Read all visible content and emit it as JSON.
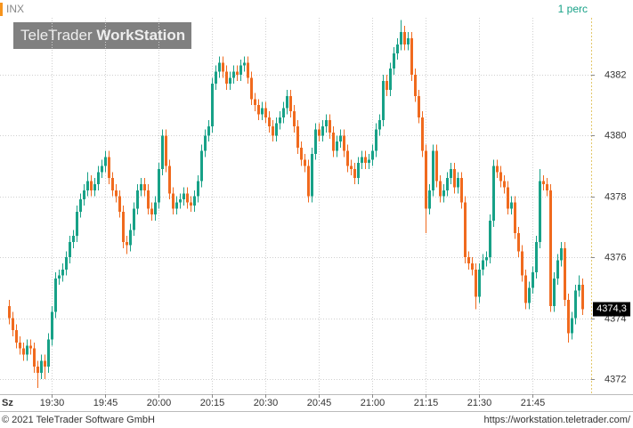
{
  "chart_data": {
    "type": "candlestick",
    "symbol": "INX",
    "interval": "1 perc",
    "watermark": [
      "TeleTrader",
      "WorkStation"
    ],
    "x_label": "Sz",
    "up_color": "#17a187",
    "down_color": "#f06a1e",
    "grid": true,
    "ylim": [
      4371.5,
      4383.87
    ],
    "yticks": [
      4372,
      4374,
      4376,
      4378,
      4380,
      4382
    ],
    "last_value": {
      "value": 4374.3,
      "label": "4374,3"
    },
    "categories": [
      null,
      null,
      null,
      null,
      null,
      null,
      null,
      null,
      null,
      null,
      null,
      null,
      "19:30",
      null,
      null,
      null,
      null,
      null,
      null,
      null,
      null,
      null,
      null,
      null,
      null,
      null,
      null,
      "19:45",
      null,
      null,
      null,
      null,
      null,
      null,
      null,
      null,
      null,
      null,
      null,
      null,
      null,
      null,
      "20:00",
      null,
      null,
      null,
      null,
      null,
      null,
      null,
      null,
      null,
      null,
      null,
      null,
      null,
      null,
      "20:15",
      null,
      null,
      null,
      null,
      null,
      null,
      null,
      null,
      null,
      null,
      null,
      null,
      null,
      null,
      "20:30",
      null,
      null,
      null,
      null,
      null,
      null,
      null,
      null,
      null,
      null,
      null,
      null,
      null,
      null,
      "20:45",
      null,
      null,
      null,
      null,
      null,
      null,
      null,
      null,
      null,
      null,
      null,
      null,
      null,
      null,
      "21:00",
      null,
      null,
      null,
      null,
      null,
      null,
      null,
      null,
      null,
      null,
      null,
      null,
      null,
      null,
      "21:15",
      null,
      null,
      null,
      null,
      null,
      null,
      null,
      null,
      null,
      null,
      null,
      null,
      null,
      null,
      "21:30",
      null,
      null,
      null,
      null,
      null,
      null,
      null,
      null,
      null,
      null,
      null,
      null,
      null,
      null,
      "21:45",
      null,
      null,
      null,
      null,
      null,
      null,
      null,
      null,
      null,
      null,
      null,
      null,
      null,
      null
    ],
    "open": [
      4374.4,
      4374.0,
      4373.6,
      4373.2,
      4373.0,
      4372.8,
      4373.1,
      4373.0,
      4372.4,
      4372.2,
      4372.6,
      4372.4,
      4373.3,
      4374.2,
      4375.3,
      4375.4,
      4375.6,
      4376.0,
      4376.5,
      4376.7,
      4377.5,
      4377.9,
      4378.2,
      4378.5,
      4378.2,
      4378.4,
      4378.8,
      4379.0,
      4379.3,
      4378.6,
      4378.2,
      4378.0,
      4377.5,
      4376.5,
      4376.4,
      4376.9,
      4377.6,
      4378.2,
      4378.4,
      4378.2,
      4377.6,
      4377.4,
      4377.8,
      4378.9,
      4380.0,
      4379.0,
      4378.1,
      4377.6,
      4377.8,
      4377.9,
      4378.1,
      4377.8,
      4377.7,
      4378.0,
      4378.5,
      4379.5,
      4380.0,
      4380.3,
      4381.7,
      4382.1,
      4382.4,
      4382.1,
      4381.7,
      4381.9,
      4382.1,
      4382.0,
      4382.3,
      4382.4,
      4381.9,
      4381.2,
      4381.0,
      4380.7,
      4380.9,
      4380.6,
      4380.3,
      4380.0,
      4380.4,
      4380.6,
      4380.9,
      4381.3,
      4380.8,
      4380.3,
      4379.6,
      4379.2,
      4379.0,
      4378.0,
      4379.4,
      4380.2,
      4380.0,
      4380.3,
      4380.5,
      4380.1,
      4379.5,
      4379.8,
      4380.0,
      4379.5,
      4379.0,
      4378.9,
      4378.6,
      4379.1,
      4379.3,
      4379.1,
      4379.2,
      4379.5,
      4380.2,
      4380.5,
      4381.8,
      4381.5,
      4382.2,
      4382.7,
      4383.0,
      4383.4,
      4383.0,
      4383.2,
      4382.0,
      4381.3,
      4380.6,
      4379.5,
      4377.6,
      4378.2,
      4379.5,
      4378.5,
      4378.0,
      4378.2,
      4378.6,
      4378.9,
      4378.3,
      4378.6,
      4377.8,
      4376.0,
      4375.8,
      4375.6,
      4374.7,
      4375.6,
      4375.9,
      4376.0,
      4377.2,
      4379.0,
      4378.8,
      4378.5,
      4378.3,
      4377.6,
      4377.8,
      4376.8,
      4376.2,
      4375.4,
      4374.5,
      4375.0,
      4375.5,
      4376.5,
      4378.5,
      4378.4,
      4378.2,
      4374.4,
      4375.3,
      4375.9,
      4376.3,
      4374.6,
      4373.5,
      4374.0,
      4374.9,
      4375.1
    ],
    "high": [
      4374.6,
      4374.2,
      4373.8,
      4373.4,
      4373.2,
      4373.3,
      4373.3,
      4373.2,
      4372.6,
      4372.8,
      4372.8,
      4373.5,
      4374.4,
      4375.5,
      4375.6,
      4375.8,
      4376.2,
      4376.7,
      4376.9,
      4377.7,
      4378.1,
      4378.4,
      4378.8,
      4378.7,
      4378.6,
      4379.0,
      4379.2,
      4379.5,
      4379.5,
      4378.8,
      4378.4,
      4378.2,
      4377.7,
      4376.7,
      4377.1,
      4377.8,
      4378.4,
      4378.6,
      4378.6,
      4378.4,
      4377.8,
      4378.0,
      4379.1,
      4380.2,
      4380.2,
      4379.2,
      4378.3,
      4378.0,
      4378.1,
      4378.3,
      4378.3,
      4378.0,
      4378.2,
      4378.7,
      4379.7,
      4380.2,
      4380.5,
      4381.9,
      4382.3,
      4382.6,
      4382.6,
      4382.3,
      4382.1,
      4382.3,
      4382.3,
      4382.5,
      4382.6,
      4382.6,
      4382.1,
      4381.4,
      4381.2,
      4381.1,
      4381.1,
      4380.8,
      4380.5,
      4380.6,
      4380.8,
      4381.1,
      4381.5,
      4381.5,
      4381.0,
      4380.5,
      4379.8,
      4379.4,
      4379.2,
      4379.6,
      4380.4,
      4380.4,
      4380.5,
      4380.7,
      4380.7,
      4380.3,
      4380.0,
      4380.2,
      4380.2,
      4379.7,
      4379.2,
      4379.1,
      4379.3,
      4379.5,
      4379.5,
      4379.4,
      4379.7,
      4380.4,
      4380.7,
      4382.0,
      4382.0,
      4382.4,
      4382.9,
      4383.2,
      4383.8,
      4383.6,
      4383.4,
      4383.4,
      4382.2,
      4381.5,
      4380.8,
      4379.7,
      4378.4,
      4379.7,
      4379.7,
      4378.7,
      4378.4,
      4378.8,
      4379.1,
      4379.1,
      4378.8,
      4378.8,
      4378.0,
      4376.2,
      4376.0,
      4375.8,
      4375.8,
      4376.1,
      4376.2,
      4377.4,
      4379.2,
      4379.2,
      4379.0,
      4378.7,
      4378.5,
      4378.0,
      4378.0,
      4377.0,
      4376.4,
      4375.6,
      4375.2,
      4375.7,
      4376.7,
      4378.9,
      4378.7,
      4378.6,
      4378.4,
      4375.5,
      4376.1,
      4376.5,
      4376.5,
      4374.8,
      4374.2,
      4375.1,
      4375.4,
      4375.3
    ],
    "low": [
      4373.8,
      4373.4,
      4373.0,
      4372.8,
      4372.6,
      4372.6,
      4372.8,
      4372.2,
      4371.7,
      4372.0,
      4372.0,
      4372.2,
      4373.1,
      4374.0,
      4375.1,
      4375.2,
      4375.4,
      4375.8,
      4376.3,
      4376.5,
      4377.3,
      4377.7,
      4378.0,
      4378.0,
      4378.0,
      4378.2,
      4378.6,
      4378.8,
      4378.4,
      4378.0,
      4377.8,
      4377.3,
      4376.3,
      4376.1,
      4376.2,
      4376.7,
      4377.4,
      4378.0,
      4378.0,
      4377.4,
      4377.2,
      4377.2,
      4377.6,
      4378.7,
      4378.8,
      4377.9,
      4377.4,
      4377.4,
      4377.6,
      4377.7,
      4377.6,
      4377.5,
      4377.5,
      4377.8,
      4378.3,
      4379.3,
      4379.8,
      4380.1,
      4381.5,
      4381.9,
      4381.9,
      4381.5,
      4381.5,
      4381.7,
      4381.8,
      4381.8,
      4382.1,
      4381.7,
      4381.0,
      4380.8,
      4380.5,
      4380.5,
      4380.4,
      4380.1,
      4379.8,
      4379.8,
      4380.2,
      4380.4,
      4380.7,
      4380.6,
      4380.1,
      4379.4,
      4379.0,
      4378.8,
      4377.8,
      4377.8,
      4379.2,
      4379.8,
      4379.8,
      4380.1,
      4379.9,
      4379.3,
      4379.3,
      4379.6,
      4379.3,
      4378.8,
      4378.7,
      4378.4,
      4378.4,
      4378.9,
      4378.9,
      4378.9,
      4379.0,
      4379.3,
      4380.0,
      4380.3,
      4381.3,
      4381.3,
      4382.0,
      4382.5,
      4382.8,
      4382.8,
      4382.8,
      4381.8,
      4381.1,
      4380.4,
      4379.3,
      4376.8,
      4377.4,
      4378.0,
      4378.3,
      4377.8,
      4377.8,
      4378.0,
      4378.4,
      4378.1,
      4378.1,
      4377.6,
      4375.8,
      4375.6,
      4375.4,
      4374.3,
      4374.5,
      4375.4,
      4375.7,
      4375.8,
      4377.0,
      4378.6,
      4378.3,
      4378.1,
      4377.4,
      4377.4,
      4376.6,
      4376.0,
      4375.2,
      4374.3,
      4374.3,
      4374.8,
      4375.3,
      4376.3,
      4378.2,
      4378.0,
      4374.2,
      4374.2,
      4375.1,
      4375.7,
      4374.4,
      4373.2,
      4373.3,
      4373.8,
      4374.7,
      4374.1
    ],
    "close": [
      4374.0,
      4373.6,
      4373.2,
      4373.0,
      4372.8,
      4373.1,
      4373.0,
      4372.4,
      4372.2,
      4372.6,
      4372.4,
      4373.3,
      4374.2,
      4375.3,
      4375.4,
      4375.6,
      4376.0,
      4376.5,
      4376.7,
      4377.5,
      4377.9,
      4378.2,
      4378.5,
      4378.2,
      4378.4,
      4378.8,
      4379.0,
      4379.3,
      4378.6,
      4378.2,
      4378.0,
      4377.5,
      4376.5,
      4376.4,
      4376.9,
      4377.6,
      4378.2,
      4378.4,
      4378.2,
      4377.6,
      4377.4,
      4377.8,
      4378.9,
      4380.0,
      4379.0,
      4378.1,
      4377.6,
      4377.8,
      4377.9,
      4378.1,
      4377.8,
      4377.7,
      4378.0,
      4378.5,
      4379.5,
      4380.0,
      4380.3,
      4381.7,
      4382.1,
      4382.4,
      4382.1,
      4381.7,
      4381.9,
      4382.1,
      4382.0,
      4382.3,
      4382.4,
      4381.9,
      4381.2,
      4381.0,
      4380.7,
      4380.9,
      4380.6,
      4380.3,
      4380.0,
      4380.4,
      4380.6,
      4380.9,
      4381.3,
      4380.8,
      4380.3,
      4379.6,
      4379.2,
      4379.0,
      4378.0,
      4379.4,
      4380.2,
      4380.0,
      4380.3,
      4380.5,
      4380.1,
      4379.5,
      4379.8,
      4380.0,
      4379.5,
      4379.0,
      4378.9,
      4378.6,
      4379.1,
      4379.3,
      4379.1,
      4379.2,
      4379.5,
      4380.2,
      4380.5,
      4381.8,
      4381.5,
      4382.2,
      4382.7,
      4383.0,
      4383.4,
      4383.0,
      4383.2,
      4382.0,
      4381.3,
      4380.6,
      4379.5,
      4377.6,
      4378.2,
      4379.5,
      4378.5,
      4378.0,
      4378.2,
      4378.6,
      4378.9,
      4378.3,
      4378.6,
      4377.8,
      4376.0,
      4375.8,
      4375.6,
      4374.7,
      4375.6,
      4375.9,
      4376.0,
      4377.2,
      4379.0,
      4378.8,
      4378.5,
      4378.3,
      4377.6,
      4377.8,
      4376.8,
      4376.2,
      4375.4,
      4374.5,
      4375.0,
      4375.5,
      4376.5,
      4378.5,
      4378.4,
      4378.2,
      4374.4,
      4375.3,
      4375.9,
      4376.3,
      4374.6,
      4373.5,
      4374.0,
      4374.9,
      4375.1,
      4374.3
    ]
  },
  "footer": {
    "copyright": "© 2021 TeleTrader Software GmbH",
    "url": "https://workstation.teletrader.com/"
  }
}
